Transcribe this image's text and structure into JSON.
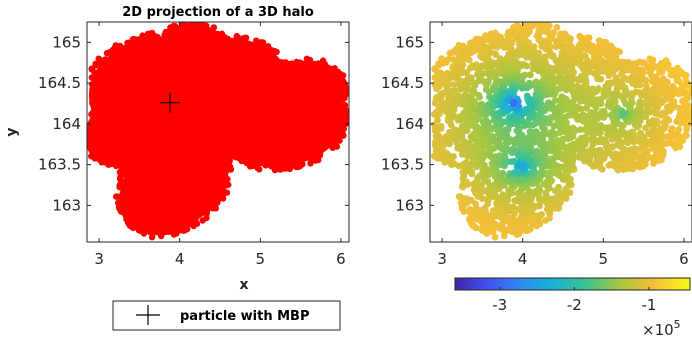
{
  "chart_data": [
    {
      "type": "scatter",
      "title": "2D projection of a 3D halo",
      "xlabel": "x",
      "ylabel": "y",
      "xlim": [
        2.85,
        6.1
      ],
      "ylim": [
        162.55,
        165.25
      ],
      "xticks": [
        3,
        4,
        5,
        6
      ],
      "yticks": [
        163,
        163.5,
        164,
        164.5,
        165
      ],
      "xtick_labels": [
        "3",
        "4",
        "5",
        "6"
      ],
      "ytick_labels": [
        "163",
        "163.5",
        "164",
        "164.5",
        "165"
      ],
      "grid": false,
      "point_color": "#ff0000",
      "marker": {
        "name": "particle with MBP",
        "shape": "plus",
        "x": 3.88,
        "y": 164.26
      },
      "legend": {
        "placement": "bottom",
        "entries": [
          "particle with MBP"
        ]
      }
    },
    {
      "type": "heatmap",
      "title": "",
      "xlim": [
        2.85,
        6.1
      ],
      "ylim": [
        162.55,
        165.25
      ],
      "xticks": [
        3,
        4,
        5,
        6
      ],
      "yticks": [
        163,
        163.5,
        164,
        164.5,
        165
      ],
      "xtick_labels": [
        "3",
        "4",
        "5",
        "6"
      ],
      "ytick_labels": [
        "163",
        "163.5",
        "164",
        "164.5",
        "165"
      ],
      "colormap": "parula",
      "colorbar": {
        "placement": "bottom",
        "range": [
          -3.6,
          -0.45
        ],
        "ticks": [
          -3,
          -2,
          -1
        ],
        "tick_labels": [
          "-3",
          "-2",
          "-1"
        ],
        "exponent_label": "×10",
        "exponent_power": "5"
      },
      "potential_minima": [
        {
          "x": 3.9,
          "y": 164.25,
          "value": -3.6
        },
        {
          "x": 3.98,
          "y": 163.47,
          "value": -3.3
        },
        {
          "x": 5.25,
          "y": 164.13,
          "value": -2.1
        }
      ]
    }
  ]
}
